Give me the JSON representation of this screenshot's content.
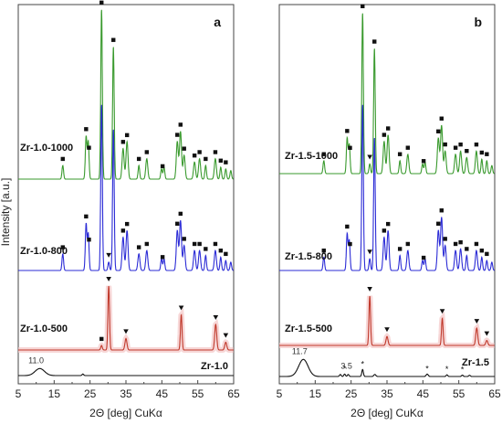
{
  "figure": {
    "ylabel": "Intensity [a.u.]"
  },
  "chart_data": [
    {
      "type": "line",
      "panel_label": "a",
      "xlabel": "2Θ [deg] CuKα",
      "ylabel": "Intensity [a.u.]",
      "xlim": [
        5,
        65
      ],
      "xticks": [
        "5",
        "15",
        "25",
        "35",
        "45",
        "55",
        "65"
      ],
      "xtick_values": [
        5,
        15,
        25,
        35,
        45,
        55,
        65
      ],
      "grid": false,
      "series": [
        {
          "name": "Zr-1.0-1000",
          "color": "#3a9a2e",
          "peaks": [
            [
              17.4,
              0.08
            ],
            [
              23.9,
              0.25
            ],
            [
              24.5,
              0.22
            ],
            [
              28.2,
              1.0
            ],
            [
              31.5,
              0.78
            ],
            [
              34.2,
              0.18
            ],
            [
              35.3,
              0.22
            ],
            [
              38.6,
              0.08
            ],
            [
              40.8,
              0.12
            ],
            [
              44.9,
              0.06
            ],
            [
              45.6,
              0.07
            ],
            [
              49.3,
              0.22
            ],
            [
              50.2,
              0.28
            ],
            [
              51.2,
              0.14
            ],
            [
              54.1,
              0.1
            ],
            [
              55.5,
              0.12
            ],
            [
              57.2,
              0.08
            ],
            [
              59.9,
              0.12
            ],
            [
              61.4,
              0.07
            ],
            [
              62.8,
              0.06
            ],
            [
              64.2,
              0.05
            ]
          ],
          "markers": [
            {
              "x": 17.4,
              "symbol": "■"
            },
            {
              "x": 23.9,
              "symbol": "■"
            },
            {
              "x": 24.7,
              "symbol": "■"
            },
            {
              "x": 28.2,
              "symbol": "■"
            },
            {
              "x": 31.5,
              "symbol": "■"
            },
            {
              "x": 34.2,
              "symbol": "■"
            },
            {
              "x": 35.3,
              "symbol": "■"
            },
            {
              "x": 38.6,
              "symbol": "■"
            },
            {
              "x": 40.8,
              "symbol": "■"
            },
            {
              "x": 45.2,
              "symbol": "■"
            },
            {
              "x": 49.3,
              "symbol": "■"
            },
            {
              "x": 50.2,
              "symbol": "■"
            },
            {
              "x": 51.2,
              "symbol": "■"
            },
            {
              "x": 54.1,
              "symbol": "■"
            },
            {
              "x": 55.5,
              "symbol": "■"
            },
            {
              "x": 57.2,
              "symbol": "■"
            },
            {
              "x": 59.9,
              "symbol": "■"
            },
            {
              "x": 61.4,
              "symbol": "■"
            },
            {
              "x": 62.8,
              "symbol": "■"
            }
          ]
        },
        {
          "name": "Zr-1.0-800",
          "color": "#2b2bd6",
          "peaks": [
            [
              17.4,
              0.1
            ],
            [
              23.9,
              0.28
            ],
            [
              24.5,
              0.22
            ],
            [
              28.2,
              1.0
            ],
            [
              30.2,
              0.05
            ],
            [
              31.5,
              0.85
            ],
            [
              34.2,
              0.2
            ],
            [
              35.3,
              0.24
            ],
            [
              38.6,
              0.1
            ],
            [
              40.8,
              0.12
            ],
            [
              44.9,
              0.07
            ],
            [
              45.6,
              0.07
            ],
            [
              49.3,
              0.24
            ],
            [
              50.2,
              0.3
            ],
            [
              51.2,
              0.15
            ],
            [
              54.1,
              0.12
            ],
            [
              55.5,
              0.12
            ],
            [
              57.2,
              0.09
            ],
            [
              59.9,
              0.12
            ],
            [
              61.4,
              0.08
            ],
            [
              62.8,
              0.06
            ],
            [
              64.2,
              0.05
            ]
          ],
          "markers": [
            {
              "x": 17.4,
              "symbol": "■"
            },
            {
              "x": 23.9,
              "symbol": "■"
            },
            {
              "x": 24.7,
              "symbol": "■"
            },
            {
              "x": 30.2,
              "symbol": "▼"
            },
            {
              "x": 34.2,
              "symbol": "■"
            },
            {
              "x": 35.3,
              "symbol": "■"
            },
            {
              "x": 38.6,
              "symbol": "■"
            },
            {
              "x": 40.8,
              "symbol": "■"
            },
            {
              "x": 45.2,
              "symbol": "■"
            },
            {
              "x": 49.3,
              "symbol": "■"
            },
            {
              "x": 50.2,
              "symbol": "■"
            },
            {
              "x": 51.2,
              "symbol": "■"
            },
            {
              "x": 54.1,
              "symbol": "■"
            },
            {
              "x": 55.5,
              "symbol": "■"
            },
            {
              "x": 57.2,
              "symbol": "■"
            },
            {
              "x": 59.9,
              "symbol": "■"
            },
            {
              "x": 61.4,
              "symbol": "■"
            },
            {
              "x": 62.8,
              "symbol": "■"
            }
          ]
        },
        {
          "name": "Zr-1.0-500",
          "color": "#c0392b",
          "peaks": [
            [
              28.2,
              0.07
            ],
            [
              30.2,
              1.0
            ],
            [
              35.0,
              0.18
            ],
            [
              50.4,
              0.55
            ],
            [
              60.0,
              0.4
            ],
            [
              62.8,
              0.12
            ]
          ],
          "markers": [
            {
              "x": 28.2,
              "symbol": "■"
            },
            {
              "x": 30.2,
              "symbol": "▼"
            },
            {
              "x": 35.0,
              "symbol": "▼"
            },
            {
              "x": 50.4,
              "symbol": "▼"
            },
            {
              "x": 60.0,
              "symbol": "▼"
            },
            {
              "x": 62.8,
              "symbol": "▼"
            }
          ]
        },
        {
          "name": "Zr-1.0",
          "color": "#111111",
          "peaks": [
            [
              11.0,
              0.55
            ],
            [
              23.0,
              0.12
            ]
          ],
          "markers": []
        }
      ],
      "annotations": [
        {
          "text": "11.0",
          "x": 11.0
        }
      ]
    },
    {
      "type": "line",
      "panel_label": "b",
      "xlabel": "2Θ [deg] CuKα",
      "ylabel": "",
      "xlim": [
        5,
        65
      ],
      "xticks": [
        "5",
        "15",
        "25",
        "35",
        "45",
        "55",
        "65"
      ],
      "xtick_values": [
        5,
        15,
        25,
        35,
        45,
        55,
        65
      ],
      "grid": false,
      "series": [
        {
          "name": "Zr-1.5-1000",
          "color": "#3a9a2e",
          "peaks": [
            [
              17.4,
              0.08
            ],
            [
              23.9,
              0.22
            ],
            [
              24.5,
              0.18
            ],
            [
              28.2,
              1.0
            ],
            [
              30.2,
              0.06
            ],
            [
              31.5,
              0.78
            ],
            [
              34.2,
              0.2
            ],
            [
              35.3,
              0.24
            ],
            [
              38.6,
              0.08
            ],
            [
              40.8,
              0.12
            ],
            [
              44.9,
              0.06
            ],
            [
              45.6,
              0.07
            ],
            [
              49.3,
              0.22
            ],
            [
              50.2,
              0.3
            ],
            [
              51.2,
              0.14
            ],
            [
              54.1,
              0.12
            ],
            [
              55.5,
              0.14
            ],
            [
              57.2,
              0.1
            ],
            [
              59.9,
              0.14
            ],
            [
              61.4,
              0.09
            ],
            [
              62.8,
              0.08
            ],
            [
              64.2,
              0.05
            ]
          ],
          "markers": [
            {
              "x": 17.4,
              "symbol": "■"
            },
            {
              "x": 23.9,
              "symbol": "■"
            },
            {
              "x": 24.7,
              "symbol": "■"
            },
            {
              "x": 28.2,
              "symbol": "■"
            },
            {
              "x": 30.2,
              "symbol": "▼"
            },
            {
              "x": 31.5,
              "symbol": "■"
            },
            {
              "x": 34.2,
              "symbol": "■"
            },
            {
              "x": 35.3,
              "symbol": "■"
            },
            {
              "x": 38.6,
              "symbol": "■"
            },
            {
              "x": 40.8,
              "symbol": "■"
            },
            {
              "x": 45.2,
              "symbol": "■"
            },
            {
              "x": 49.3,
              "symbol": "■"
            },
            {
              "x": 50.2,
              "symbol": "■"
            },
            {
              "x": 51.2,
              "symbol": "■"
            },
            {
              "x": 54.1,
              "symbol": "■"
            },
            {
              "x": 55.5,
              "symbol": "■"
            },
            {
              "x": 57.2,
              "symbol": "■"
            },
            {
              "x": 59.9,
              "symbol": "■"
            },
            {
              "x": 61.4,
              "symbol": "■"
            },
            {
              "x": 62.8,
              "symbol": "■"
            }
          ]
        },
        {
          "name": "Zr-1.5-800",
          "color": "#2b2bd6",
          "peaks": [
            [
              17.4,
              0.08
            ],
            [
              23.9,
              0.22
            ],
            [
              24.5,
              0.18
            ],
            [
              28.2,
              1.0
            ],
            [
              30.2,
              0.07
            ],
            [
              31.5,
              0.8
            ],
            [
              34.2,
              0.2
            ],
            [
              35.3,
              0.24
            ],
            [
              38.6,
              0.09
            ],
            [
              40.8,
              0.12
            ],
            [
              44.9,
              0.06
            ],
            [
              45.6,
              0.07
            ],
            [
              49.3,
              0.24
            ],
            [
              50.2,
              0.32
            ],
            [
              51.2,
              0.15
            ],
            [
              54.1,
              0.12
            ],
            [
              55.5,
              0.13
            ],
            [
              57.2,
              0.09
            ],
            [
              59.9,
              0.12
            ],
            [
              61.4,
              0.08
            ],
            [
              62.8,
              0.06
            ],
            [
              64.2,
              0.05
            ]
          ],
          "markers": [
            {
              "x": 17.4,
              "symbol": "■"
            },
            {
              "x": 23.9,
              "symbol": "■"
            },
            {
              "x": 24.7,
              "symbol": "■"
            },
            {
              "x": 30.2,
              "symbol": "▼"
            },
            {
              "x": 34.2,
              "symbol": "■"
            },
            {
              "x": 35.3,
              "symbol": "■"
            },
            {
              "x": 38.6,
              "symbol": "■"
            },
            {
              "x": 40.8,
              "symbol": "■"
            },
            {
              "x": 45.2,
              "symbol": "■"
            },
            {
              "x": 49.3,
              "symbol": "■"
            },
            {
              "x": 50.2,
              "symbol": "■"
            },
            {
              "x": 51.2,
              "symbol": "■"
            },
            {
              "x": 54.1,
              "symbol": "■"
            },
            {
              "x": 55.5,
              "symbol": "■"
            },
            {
              "x": 57.2,
              "symbol": "■"
            },
            {
              "x": 59.9,
              "symbol": "■"
            },
            {
              "x": 61.4,
              "symbol": "■"
            },
            {
              "x": 62.8,
              "symbol": "■"
            }
          ]
        },
        {
          "name": "Zr-1.5-500",
          "color": "#c0392b",
          "peaks": [
            [
              30.2,
              1.0
            ],
            [
              35.0,
              0.18
            ],
            [
              50.4,
              0.55
            ],
            [
              60.0,
              0.35
            ],
            [
              62.8,
              0.1
            ]
          ],
          "markers": [
            {
              "x": 30.2,
              "symbol": "▼"
            },
            {
              "x": 35.0,
              "symbol": "▼"
            },
            {
              "x": 50.4,
              "symbol": "▼"
            },
            {
              "x": 60.0,
              "symbol": "▼"
            },
            {
              "x": 62.8,
              "symbol": "▼"
            }
          ]
        },
        {
          "name": "Zr-1.5",
          "color": "#111111",
          "peaks": [
            [
              11.7,
              0.85
            ],
            [
              22.0,
              0.1
            ],
            [
              23.2,
              0.12
            ],
            [
              24.2,
              0.1
            ],
            [
              28.2,
              0.35
            ],
            [
              31.6,
              0.1
            ],
            [
              46.2,
              0.12
            ],
            [
              51.7,
              0.08
            ],
            [
              56.0,
              0.07
            ],
            [
              58.0,
              0.06
            ]
          ],
          "markers": [
            {
              "x": 23.2,
              "symbol": "*"
            },
            {
              "x": 28.2,
              "symbol": "*"
            },
            {
              "x": 46.2,
              "symbol": "*"
            },
            {
              "x": 51.7,
              "symbol": "*"
            },
            {
              "x": 56.0,
              "symbol": "*"
            }
          ]
        }
      ],
      "annotations": [
        {
          "text": "11.7",
          "x": 11.7
        },
        {
          "text": "3.5",
          "x": 23.2
        }
      ]
    }
  ]
}
